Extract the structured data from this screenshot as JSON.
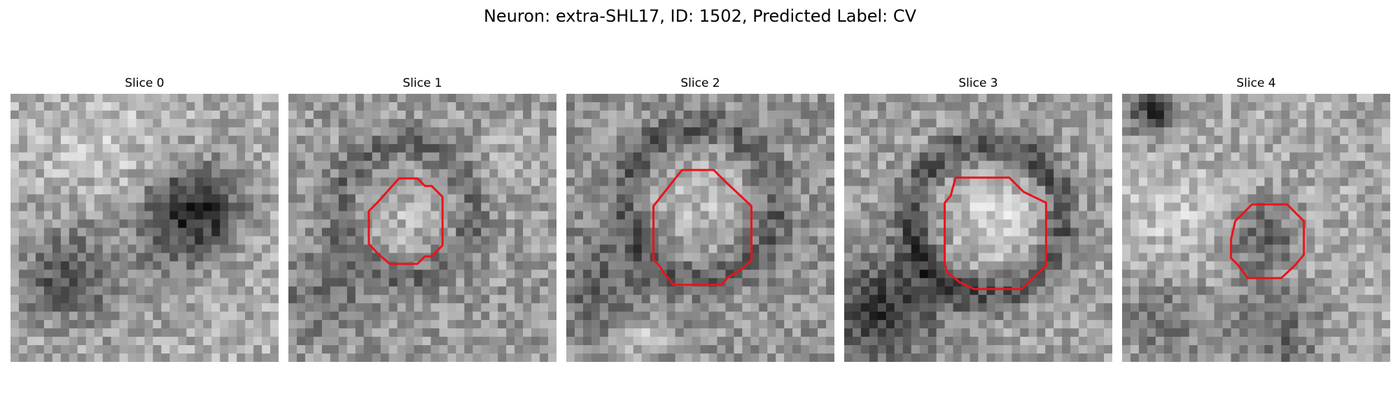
{
  "figure": {
    "title": "Neuron: extra-SHL17, ID: 1502, Predicted Label: CV"
  },
  "slices": [
    {
      "label": "Slice 0",
      "has_contour": false
    },
    {
      "label": "Slice 1",
      "has_contour": true
    },
    {
      "label": "Slice 2",
      "has_contour": true
    },
    {
      "label": "Slice 3",
      "has_contour": true
    },
    {
      "label": "Slice 4",
      "has_contour": true
    }
  ],
  "colors": {
    "contour": "#e8141c",
    "background": "#ffffff"
  }
}
